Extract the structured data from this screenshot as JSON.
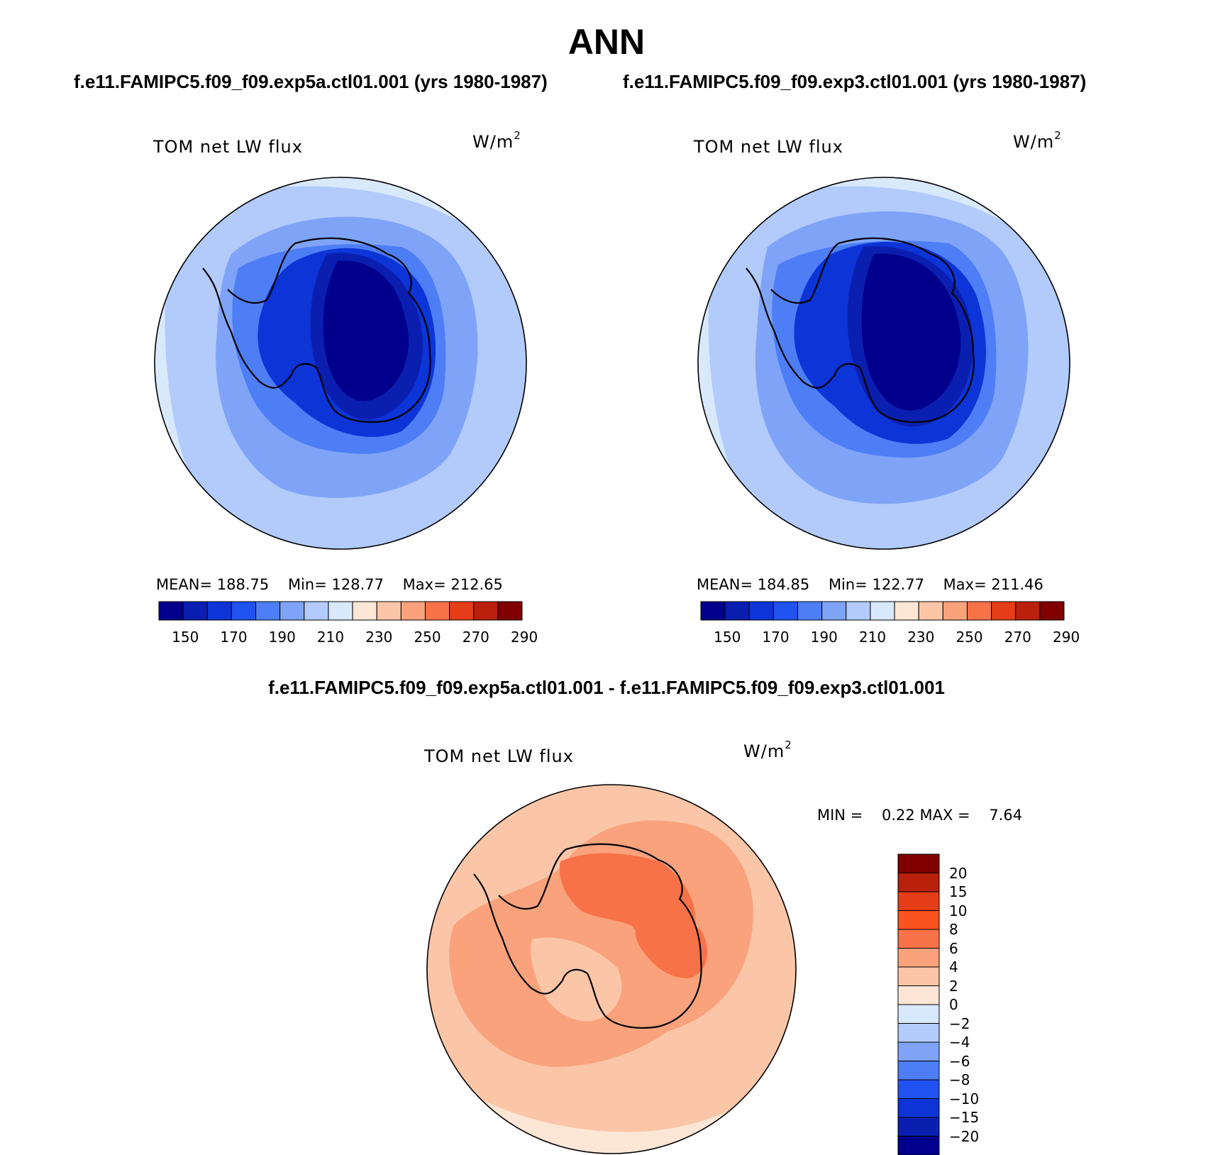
{
  "main_title": "ANN",
  "panels": [
    {
      "case": "f.e11.FAMIPC5.f09_f09.exp5a.ctl01.001 (yrs 1980-1987)",
      "variable": "TOM net LW flux",
      "units_base": "W/m",
      "units_exp": "2",
      "stats": {
        "mean_label": "MEAN=",
        "mean": "188.75",
        "min_label": "Min=",
        "min": "128.77",
        "max_label": "Max=",
        "max": "212.65"
      }
    },
    {
      "case": "f.e11.FAMIPC5.f09_f09.exp3.ctl01.001 (yrs 1980-1987)",
      "variable": "TOM net LW flux",
      "units_base": "W/m",
      "units_exp": "2",
      "stats": {
        "mean_label": "MEAN=",
        "mean": "184.85",
        "min_label": "Min=",
        "min": "122.77",
        "max_label": "Max=",
        "max": "211.46"
      }
    }
  ],
  "diff_panel": {
    "title": "f.e11.FAMIPC5.f09_f09.exp5a.ctl01.001 - f.e11.FAMIPC5.f09_f09.exp3.ctl01.001",
    "variable": "TOM net LW flux",
    "units_base": "W/m",
    "units_exp": "2",
    "min_label": "MIN =",
    "min": "0.22",
    "max_label": "MAX =",
    "max": "7.64"
  },
  "chart_data": [
    {
      "type": "heatmap",
      "projection": "south-polar-stereographic",
      "region": "Antarctica",
      "title": "TOM net LW flux",
      "units": "W/m2",
      "mean": 188.75,
      "min": 128.77,
      "max": 212.65,
      "colorbar": {
        "levels": [
          150,
          160,
          170,
          180,
          190,
          200,
          210,
          220,
          230,
          240,
          250,
          260,
          270,
          280,
          290
        ],
        "tick_labels": [
          "150",
          "170",
          "190",
          "210",
          "230",
          "250",
          "270",
          "290"
        ],
        "colors": [
          "#00008c",
          "#0a1fb0",
          "#0c34d6",
          "#2052ef",
          "#4d7ef5",
          "#7fa4f7",
          "#b2cbfb",
          "#d8e9fb",
          "#fde6d5",
          "#fbc6a8",
          "#f9a27c",
          "#f77248",
          "#e43d18",
          "#b9210c",
          "#800000"
        ]
      }
    },
    {
      "type": "heatmap",
      "projection": "south-polar-stereographic",
      "region": "Antarctica",
      "title": "TOM net LW flux",
      "units": "W/m2",
      "mean": 184.85,
      "min": 122.77,
      "max": 211.46,
      "colorbar": {
        "levels": [
          150,
          160,
          170,
          180,
          190,
          200,
          210,
          220,
          230,
          240,
          250,
          260,
          270,
          280,
          290
        ],
        "tick_labels": [
          "150",
          "170",
          "190",
          "210",
          "230",
          "250",
          "270",
          "290"
        ],
        "colors": [
          "#00008c",
          "#0a1fb0",
          "#0c34d6",
          "#2052ef",
          "#4d7ef5",
          "#7fa4f7",
          "#b2cbfb",
          "#d8e9fb",
          "#fde6d5",
          "#fbc6a8",
          "#f9a27c",
          "#f77248",
          "#e43d18",
          "#b9210c",
          "#800000"
        ]
      }
    },
    {
      "type": "heatmap",
      "projection": "south-polar-stereographic",
      "region": "Antarctica",
      "title": "TOM net LW flux",
      "units": "W/m2",
      "min": 0.22,
      "max": 7.64,
      "colorbar": {
        "orientation": "vertical",
        "tick_labels_top_to_bottom": [
          "20",
          "15",
          "10",
          "8",
          "6",
          "4",
          "2",
          "0",
          "−2",
          "−4",
          "−6",
          "−8",
          "−10",
          "−15",
          "−20"
        ],
        "colors_top_to_bottom": [
          "#800000",
          "#b9210c",
          "#e43d18",
          "#f9531f",
          "#f77248",
          "#f9a27c",
          "#fbc6a8",
          "#fde6d5",
          "#d8e9fb",
          "#b2cbfb",
          "#7fa4f7",
          "#4d7ef5",
          "#2052ef",
          "#0c34d6",
          "#0a1fb0",
          "#00008c"
        ]
      }
    }
  ]
}
